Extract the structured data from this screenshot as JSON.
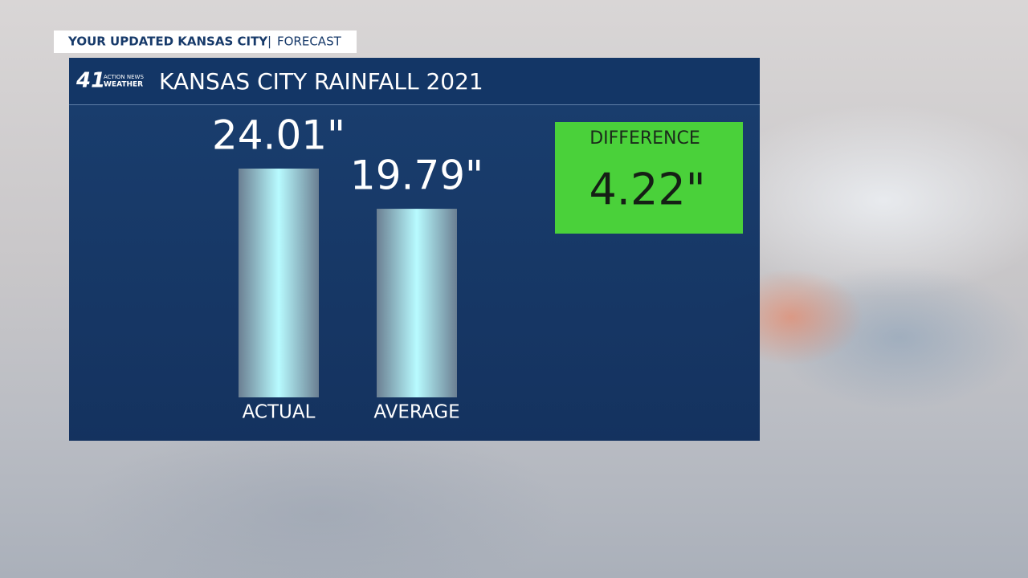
{
  "header": {
    "show": "YOUR UPDATED KANSAS CITY",
    "section": "FORECAST"
  },
  "logo": {
    "number": "41",
    "line1": "ACTION NEWS",
    "line2": "WEATHER"
  },
  "chart_data": {
    "type": "bar",
    "title": "KANSAS CITY RAINFALL 2021",
    "categories": [
      "ACTUAL",
      "AVERAGE"
    ],
    "values": [
      24.01,
      19.79
    ],
    "value_labels": [
      "24.01\"",
      "19.79\""
    ],
    "annotation": {
      "title": "DIFFERENCE",
      "text": "4.22\"",
      "color": "#4ad13a"
    }
  }
}
